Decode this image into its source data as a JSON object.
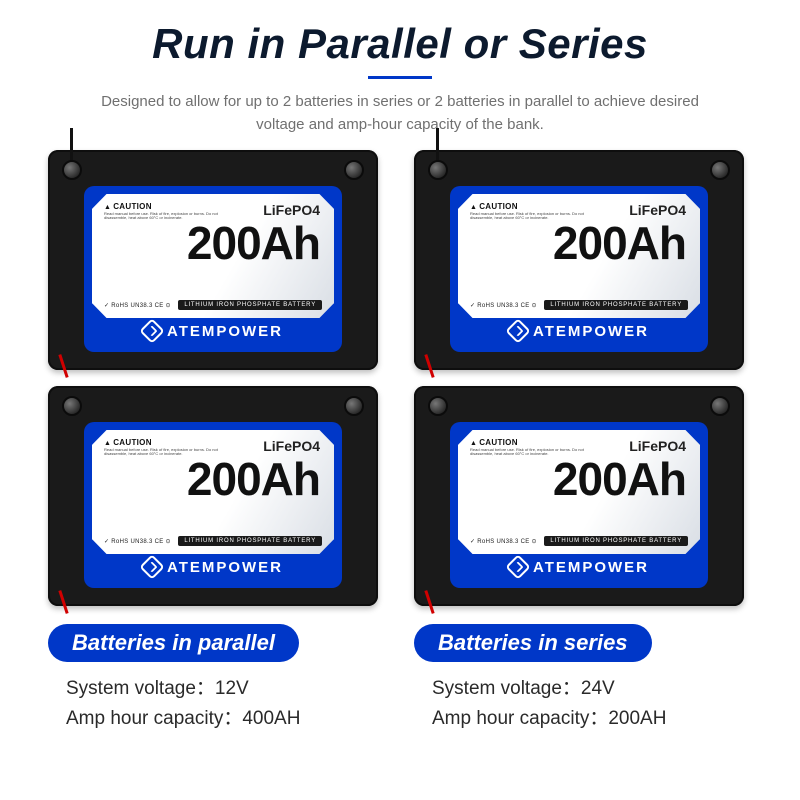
{
  "title": "Run in Parallel or Series",
  "subtitle": "Designed to allow for up to 2 batteries in series or 2 batteries in parallel to achieve desired voltage and amp-hour capacity of the bank.",
  "colors": {
    "brand_blue": "#0037c8",
    "battery_body": "#1a1a1a",
    "text_dark": "#0c1a2e",
    "text_gray": "#707070",
    "wire_red": "#d10000"
  },
  "battery": {
    "caution_label": "CAUTION",
    "chemistry": "LiFePO4",
    "capacity": "200Ah",
    "subband": "LITHIUM IRON PHOSPHATE BATTERY",
    "certs": "✓ RoHS UN38.3 CE ⊙",
    "brand": "ATEMPOWER"
  },
  "configs": [
    {
      "pill": "Batteries in parallel",
      "voltage_label": "System voltage：",
      "voltage_value": "12V",
      "capacity_label": "Amp hour capacity：",
      "capacity_value": "400AH"
    },
    {
      "pill": "Batteries in series",
      "voltage_label": "System voltage：",
      "voltage_value": "24V",
      "capacity_label": "Amp hour capacity：",
      "capacity_value": "200AH"
    }
  ]
}
